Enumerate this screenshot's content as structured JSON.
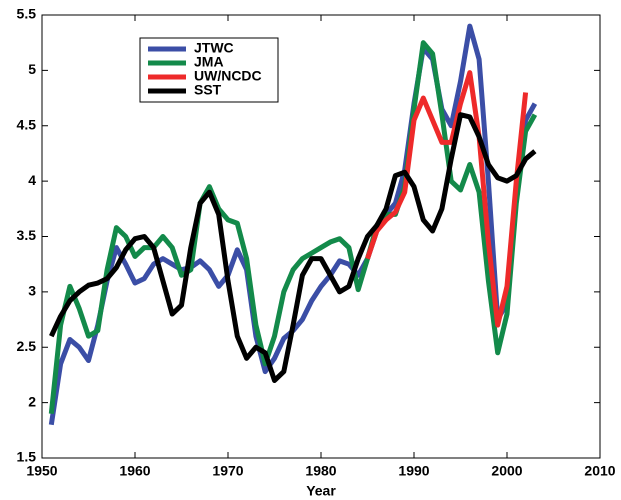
{
  "chart_data": {
    "type": "line",
    "xlabel": "Year",
    "x": [
      1951,
      1952,
      1953,
      1954,
      1955,
      1956,
      1957,
      1958,
      1959,
      1960,
      1961,
      1962,
      1963,
      1964,
      1965,
      1966,
      1967,
      1968,
      1969,
      1970,
      1971,
      1972,
      1973,
      1974,
      1975,
      1976,
      1977,
      1978,
      1979,
      1980,
      1981,
      1982,
      1983,
      1984,
      1985,
      1986,
      1987,
      1988,
      1989,
      1990,
      1991,
      1992,
      1993,
      1994,
      1995,
      1996,
      1997,
      1998,
      1999,
      2000,
      2001,
      2002,
      2003
    ],
    "series": [
      {
        "name": "JTWC",
        "color": "#3b4ea6",
        "values": [
          1.8,
          2.35,
          2.57,
          2.5,
          2.38,
          2.7,
          3.1,
          3.4,
          3.25,
          3.08,
          3.12,
          3.25,
          3.3,
          3.25,
          3.2,
          3.22,
          3.28,
          3.2,
          3.05,
          3.15,
          3.38,
          3.2,
          2.6,
          2.28,
          2.4,
          2.58,
          2.65,
          2.75,
          2.92,
          3.05,
          3.15,
          3.28,
          3.25,
          3.15,
          3.3,
          3.55,
          3.7,
          3.8,
          4.1,
          4.7,
          5.2,
          5.1,
          4.65,
          4.5,
          4.9,
          5.4,
          5.1,
          4.0,
          2.75,
          2.9,
          3.9,
          4.55,
          4.7
        ]
      },
      {
        "name": "JMA",
        "color": "#138a4a",
        "values": [
          1.9,
          2.7,
          3.05,
          2.85,
          2.6,
          2.65,
          3.2,
          3.58,
          3.5,
          3.32,
          3.4,
          3.4,
          3.5,
          3.4,
          3.15,
          3.2,
          3.8,
          3.95,
          3.75,
          3.65,
          3.62,
          3.3,
          2.7,
          2.35,
          2.6,
          3.0,
          3.2,
          3.3,
          3.35,
          3.4,
          3.45,
          3.48,
          3.4,
          3.02,
          3.3,
          3.6,
          3.7,
          3.7,
          3.95,
          4.65,
          5.25,
          5.15,
          4.6,
          4.0,
          3.92,
          4.15,
          3.9,
          3.1,
          2.45,
          2.8,
          3.8,
          4.45,
          4.6
        ]
      },
      {
        "name": "UW/NCDC",
        "color": "#ee2a2a",
        "values": [
          null,
          null,
          null,
          null,
          null,
          null,
          null,
          null,
          null,
          null,
          null,
          null,
          null,
          null,
          null,
          null,
          null,
          null,
          null,
          null,
          null,
          null,
          null,
          null,
          null,
          null,
          null,
          null,
          null,
          null,
          null,
          null,
          null,
          null,
          3.3,
          3.55,
          3.65,
          3.72,
          3.9,
          4.55,
          4.75,
          4.55,
          4.35,
          4.35,
          4.7,
          4.98,
          4.4,
          3.45,
          2.7,
          3.05,
          4.0,
          4.8,
          null
        ]
      },
      {
        "name": "SST",
        "color": "#000000",
        "values": [
          2.6,
          2.78,
          2.92,
          3.0,
          3.06,
          3.08,
          3.12,
          3.22,
          3.38,
          3.48,
          3.5,
          3.4,
          3.1,
          2.8,
          2.88,
          3.4,
          3.8,
          3.9,
          3.7,
          3.1,
          2.6,
          2.4,
          2.5,
          2.45,
          2.2,
          2.28,
          2.7,
          3.15,
          3.3,
          3.3,
          3.15,
          3.0,
          3.05,
          3.3,
          3.5,
          3.6,
          3.75,
          4.05,
          4.08,
          3.95,
          3.65,
          3.55,
          3.75,
          4.2,
          4.6,
          4.58,
          4.4,
          4.15,
          4.03,
          4.0,
          4.05,
          4.2,
          4.27
        ]
      }
    ],
    "xlim": [
      1950,
      2010
    ],
    "xticks": [
      1950,
      1960,
      1970,
      1980,
      1990,
      2000,
      2010
    ],
    "ylim": [
      1.5,
      5.5
    ],
    "yticks": [
      1.5,
      2,
      2.5,
      3,
      3.5,
      4,
      4.5,
      5,
      5.5
    ],
    "legend": "upper left"
  }
}
